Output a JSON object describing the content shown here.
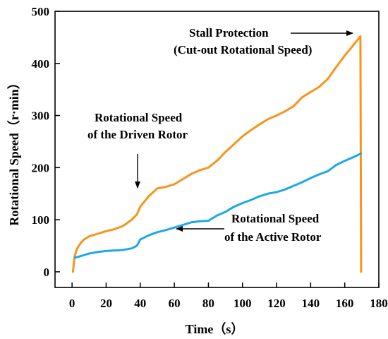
{
  "chart_data": {
    "type": "line",
    "title": "",
    "xlabel": "Time（s）",
    "ylabel": "Rotational Speed（r·min）",
    "xlim": [
      -10,
      180
    ],
    "ylim": [
      -30,
      500
    ],
    "xticks": [
      0,
      20,
      40,
      60,
      80,
      100,
      120,
      140,
      160,
      180
    ],
    "yticks": [
      0,
      100,
      200,
      300,
      400,
      500
    ],
    "grid": false,
    "legend": "none",
    "series": [
      {
        "name": "Rotational Speed of the Driven Rotor",
        "color": "#F7941D",
        "x": [
          0.5,
          1.5,
          3,
          5,
          7,
          10,
          15,
          20,
          25,
          30,
          35,
          38,
          40,
          42,
          45,
          50,
          55,
          60,
          65,
          70,
          75,
          80,
          85,
          90,
          95,
          100,
          105,
          110,
          115,
          120,
          125,
          130,
          135,
          140,
          145,
          150,
          155,
          160,
          165,
          169.2,
          169.6
        ],
        "y": [
          0,
          30,
          45,
          55,
          62,
          68,
          73,
          78,
          82,
          88,
          100,
          110,
          125,
          133,
          145,
          160,
          163,
          168,
          178,
          188,
          195,
          200,
          213,
          230,
          245,
          260,
          272,
          283,
          293,
          300,
          308,
          318,
          335,
          345,
          355,
          370,
          393,
          415,
          435,
          452,
          0
        ]
      },
      {
        "name": "Rotational Speed of the Active Rotor",
        "color": "#1EA7E8",
        "x": [
          1.5,
          5,
          10,
          15,
          20,
          25,
          30,
          35,
          38,
          40,
          45,
          50,
          55,
          60,
          65,
          70,
          75,
          80,
          85,
          90,
          95,
          100,
          105,
          110,
          115,
          120,
          125,
          130,
          135,
          140,
          145,
          150,
          155,
          160,
          165,
          169.5
        ],
        "y": [
          27,
          30,
          35,
          38,
          40,
          41,
          42,
          45,
          50,
          62,
          70,
          76,
          80,
          85,
          90,
          95,
          97,
          98,
          108,
          115,
          125,
          132,
          138,
          145,
          150,
          153,
          158,
          165,
          172,
          180,
          187,
          193,
          205,
          213,
          220,
          227
        ]
      }
    ],
    "annotations": {
      "stall_line1": "Stall Protection",
      "stall_line2": "(Cut-out Rotational Speed)",
      "driven_line1": "Rotational Speed",
      "driven_line2": "of the Driven Rotor",
      "active_line1": "Rotational Speed",
      "active_line2": "of the Active Rotor"
    }
  }
}
